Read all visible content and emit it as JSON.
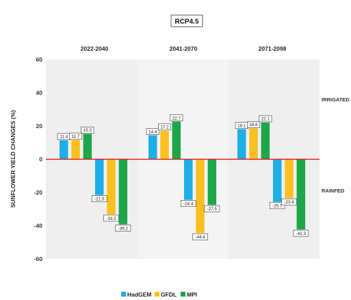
{
  "chart_data": {
    "type": "bar",
    "title": "RCP4.5",
    "ylabel": "SUNFLOWER YIELD CHANGES (%)",
    "xlabel": "",
    "ylim": [
      -60,
      60
    ],
    "yticks": [
      -60,
      -40,
      -20,
      0,
      20,
      40,
      60
    ],
    "grid": false,
    "legend_position": "bottom",
    "periods": [
      "2022-2040",
      "2041-2070",
      "2071-2098"
    ],
    "groups": [
      "IRRIGATED",
      "RAINFED"
    ],
    "series": [
      {
        "name": "HadGEM",
        "color": "#1eaee8",
        "irrigated": [
          11.4,
          14.4,
          18.1
        ],
        "rainfed": [
          -21.5,
          -24.4,
          -25.7
        ]
      },
      {
        "name": "GFDL",
        "color": "#fbc020",
        "irrigated": [
          11.7,
          17.2,
          18.6
        ],
        "rainfed": [
          -33.2,
          -44.4,
          -23.4
        ]
      },
      {
        "name": "MPI",
        "color": "#1ea64a",
        "irrigated": [
          15.3,
          22.7,
          22.1
        ],
        "rainfed": [
          -39.2,
          -27.5,
          -42.3
        ]
      }
    ],
    "zero_line_color": "#e02020"
  }
}
